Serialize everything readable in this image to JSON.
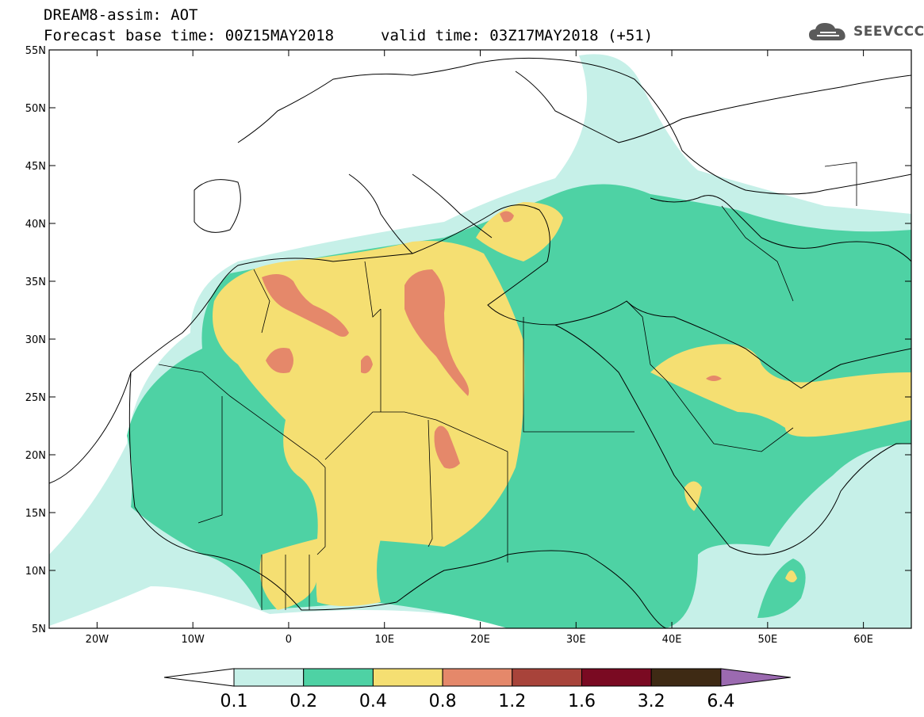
{
  "header": {
    "title": "DREAM8-assim: AOT",
    "base_time": "Forecast base time: 00Z15MAY2018",
    "valid_time": "valid time: 03Z17MAY2018 (+51)"
  },
  "logo": {
    "text": "SEEVCCC",
    "icon": "cloud-icon"
  },
  "map": {
    "lon_range": [
      -25,
      65
    ],
    "lat_range": [
      5,
      55
    ],
    "lat_ticks": [
      "55N",
      "50N",
      "45N",
      "40N",
      "35N",
      "30N",
      "25N",
      "20N",
      "15N",
      "10N",
      "5N"
    ],
    "lon_ticks": [
      "20W",
      "10W",
      "0",
      "10E",
      "20E",
      "30E",
      "40E",
      "50E",
      "60E"
    ]
  },
  "legend": {
    "labels": [
      "0.1",
      "0.2",
      "0.4",
      "0.8",
      "1.2",
      "1.6",
      "3.2",
      "6.4"
    ],
    "colors": [
      "#ffffff",
      "#c6f0e8",
      "#4ed2a4",
      "#f5df72",
      "#e5886a",
      "#a8433a",
      "#7a0a22",
      "#3e2a14",
      "#9b6ab0"
    ]
  }
}
